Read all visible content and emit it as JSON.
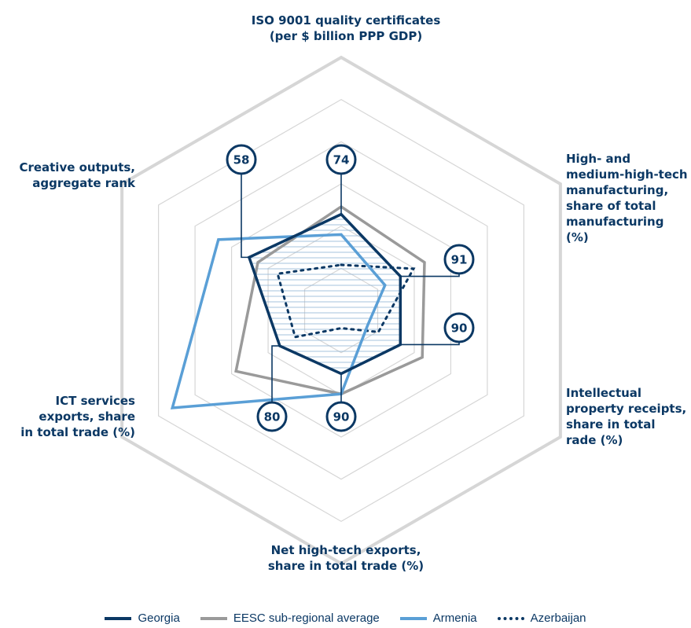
{
  "axis_labels": {
    "top": "ISO 9001 quality certificates\n(per $ billion PPP GDP)",
    "upper_right": "High- and\nmedium-high-tech\nmanufacturing,\nshare of total\nmanufacturing (%)",
    "lower_right": "Intellectual\nproperty receipts,\nshare in total\nrade (%)",
    "bottom": "Net high-tech exports,\nshare in total trade (%)",
    "lower_left": "ICT services\nexports, share\nin total trade (%)",
    "upper_left": "Creative outputs,\naggregate rank"
  },
  "rank_badges": [
    "74",
    "91",
    "90",
    "90",
    "80",
    "58"
  ],
  "colors": {
    "georgia": "#0b3864",
    "eesc": "#9a9a9a",
    "armenia": "#5a9fd6",
    "azerbaijan": "#0b3864",
    "grid": "#d6d6d6",
    "hatch": "#8fb4d6"
  },
  "legend": [
    {
      "label": "Georgia",
      "style": "solid",
      "color": "#0b3864"
    },
    {
      "label": "EESC sub-regional average",
      "style": "solid",
      "color": "#9a9a9a"
    },
    {
      "label": "Armenia",
      "style": "solid",
      "color": "#5a9fd6"
    },
    {
      "label": "Azerbaijan",
      "style": "dotted",
      "color": "#0b3864"
    }
  ],
  "chart_data": {
    "type": "radar",
    "axes": [
      "ISO 9001 quality certificates (per $ billion PPP GDP)",
      "High- and medium-high-tech manufacturing, share of total manufacturing (%)",
      "Intellectual property receipts, share in total rade (%)",
      "Net high-tech exports, share in total trade (%)",
      "ICT services exports, share in total trade (%)",
      "Creative outputs, aggregate rank"
    ],
    "range": [
      0,
      100
    ],
    "grid_levels": 6,
    "series": [
      {
        "name": "Georgia",
        "values": [
          38,
          27,
          27,
          25,
          28,
          42
        ],
        "ranks": [
          74,
          91,
          90,
          90,
          80,
          58
        ]
      },
      {
        "name": "EESC sub-regional average",
        "values": [
          41,
          38,
          37,
          33,
          48,
          38
        ]
      },
      {
        "name": "Armenia",
        "values": [
          30,
          20,
          12,
          33,
          77,
          56
        ]
      },
      {
        "name": "Azerbaijan",
        "values": [
          18,
          33,
          17,
          7,
          21,
          29
        ]
      }
    ]
  }
}
